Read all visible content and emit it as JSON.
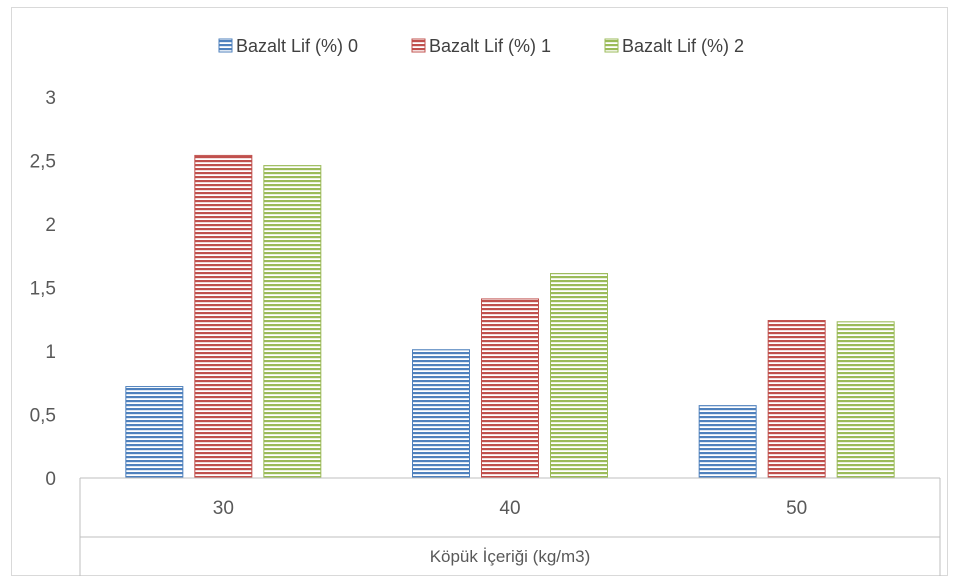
{
  "chart_data": {
    "type": "bar",
    "title": "",
    "xlabel": "Köpük İçeriği (kg/m3)",
    "ylabel": "",
    "categories": [
      "30",
      "40",
      "50"
    ],
    "series": [
      {
        "name": "Bazalt Lif (%) 0",
        "color": "#4f81bd",
        "values": [
          0.72,
          1.01,
          0.57
        ]
      },
      {
        "name": "Bazalt Lif (%) 1",
        "color": "#c0504d",
        "values": [
          2.54,
          1.41,
          1.24
        ]
      },
      {
        "name": "Bazalt Lif (%) 2",
        "color": "#9bbb59",
        "values": [
          2.46,
          1.61,
          1.23
        ]
      }
    ],
    "ylim": [
      0,
      3
    ],
    "yticks": [
      "0",
      "0,5",
      "1",
      "1,5",
      "2",
      "2,5",
      "3"
    ],
    "grid": false,
    "legend_position": "top",
    "bar_pattern": "horizontal-stripes"
  }
}
